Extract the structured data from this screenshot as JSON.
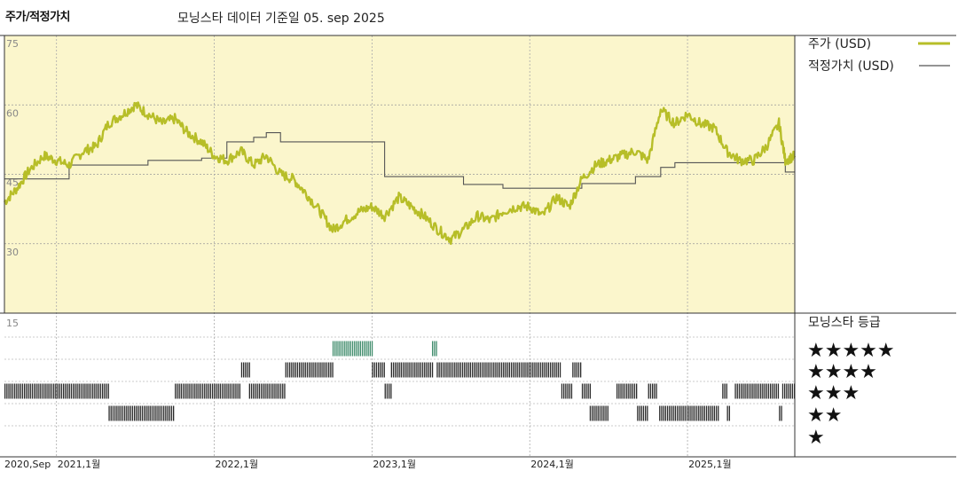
{
  "header": {
    "title": "주가/적정가치",
    "subtitle": "모닝스타 데이터 기준일 05. sep 2025"
  },
  "colors": {
    "price": "#b7be28",
    "fair": "#555555",
    "panel_bg": "#fbf6cc",
    "rating_green": "#3d8a6a",
    "rating_dark": "#2a2a2a"
  },
  "chart_data": {
    "type": "line",
    "y_axis": {
      "ylim": [
        15,
        75
      ],
      "ticks": [
        75,
        60,
        45,
        30
      ]
    },
    "x_axis": {
      "tick_labels": [
        "2020,Sep",
        "2021,1월",
        "2022,1월",
        "2023,1월",
        "2024,1월",
        "2025,1월"
      ],
      "tick_dates": [
        2020.67,
        2021.0,
        2022.0,
        2023.0,
        2024.0,
        2025.0
      ],
      "xlim": [
        2020.67,
        2025.68
      ]
    },
    "series": [
      {
        "name": "주가 (USD)",
        "points": [
          [
            2020.67,
            39
          ],
          [
            2020.75,
            42
          ],
          [
            2020.83,
            46
          ],
          [
            2020.92,
            49
          ],
          [
            2021.0,
            48
          ],
          [
            2021.08,
            47
          ],
          [
            2021.17,
            50
          ],
          [
            2021.25,
            51
          ],
          [
            2021.33,
            56
          ],
          [
            2021.42,
            58
          ],
          [
            2021.5,
            60
          ],
          [
            2021.58,
            58
          ],
          [
            2021.67,
            56
          ],
          [
            2021.75,
            57
          ],
          [
            2021.83,
            54
          ],
          [
            2021.92,
            52
          ],
          [
            2022.0,
            49
          ],
          [
            2022.08,
            48
          ],
          [
            2022.17,
            50
          ],
          [
            2022.25,
            47
          ],
          [
            2022.33,
            49
          ],
          [
            2022.42,
            45
          ],
          [
            2022.5,
            44
          ],
          [
            2022.58,
            41
          ],
          [
            2022.67,
            37
          ],
          [
            2022.75,
            33
          ],
          [
            2022.83,
            35
          ],
          [
            2022.92,
            37
          ],
          [
            2023.0,
            38
          ],
          [
            2023.08,
            36
          ],
          [
            2023.17,
            40
          ],
          [
            2023.25,
            38
          ],
          [
            2023.33,
            36
          ],
          [
            2023.42,
            33
          ],
          [
            2023.5,
            31
          ],
          [
            2023.58,
            33
          ],
          [
            2023.67,
            36
          ],
          [
            2023.75,
            35
          ],
          [
            2023.83,
            37
          ],
          [
            2023.92,
            38
          ],
          [
            2024.0,
            38
          ],
          [
            2024.08,
            36
          ],
          [
            2024.17,
            40
          ],
          [
            2024.25,
            38
          ],
          [
            2024.33,
            44
          ],
          [
            2024.42,
            47
          ],
          [
            2024.5,
            48
          ],
          [
            2024.58,
            49
          ],
          [
            2024.67,
            50
          ],
          [
            2024.75,
            48
          ],
          [
            2024.83,
            59
          ],
          [
            2024.92,
            56
          ],
          [
            2025.0,
            58
          ],
          [
            2025.08,
            56
          ],
          [
            2025.17,
            55
          ],
          [
            2025.25,
            50
          ],
          [
            2025.33,
            48
          ],
          [
            2025.42,
            48
          ],
          [
            2025.5,
            51
          ],
          [
            2025.58,
            56
          ],
          [
            2025.62,
            48
          ],
          [
            2025.68,
            49
          ]
        ]
      },
      {
        "name": "적정가치 (USD)",
        "steps": [
          [
            2020.67,
            44
          ],
          [
            2021.08,
            47
          ],
          [
            2021.58,
            48
          ],
          [
            2021.92,
            48.5
          ],
          [
            2022.08,
            52
          ],
          [
            2022.25,
            53
          ],
          [
            2022.33,
            54
          ],
          [
            2022.42,
            52
          ],
          [
            2023.08,
            44.5
          ],
          [
            2023.58,
            42.8
          ],
          [
            2023.83,
            42
          ],
          [
            2024.25,
            42
          ],
          [
            2024.33,
            43
          ],
          [
            2024.67,
            44.5
          ],
          [
            2024.83,
            46.5
          ],
          [
            2024.92,
            47.5
          ],
          [
            2025.62,
            45.5
          ],
          [
            2025.68,
            45.5
          ]
        ]
      }
    ],
    "legend": [
      "주가 (USD)",
      "적정가치 (USD)"
    ],
    "rating_panel": {
      "title": "모닝스타 등급",
      "rows": [
        "★★★★★",
        "★★★★",
        "★★★",
        "★★",
        "★"
      ],
      "segments": [
        {
          "stars": 3,
          "from": 2020.67,
          "to": 2021.33
        },
        {
          "stars": 2,
          "from": 2021.33,
          "to": 2021.75
        },
        {
          "stars": 3,
          "from": 2021.75,
          "to": 2022.17
        },
        {
          "stars": 4,
          "from": 2022.17,
          "to": 2022.22
        },
        {
          "stars": 3,
          "from": 2022.22,
          "to": 2022.45
        },
        {
          "stars": 4,
          "from": 2022.45,
          "to": 2022.75
        },
        {
          "stars": 5,
          "from": 2022.75,
          "to": 2023.0
        },
        {
          "stars": 4,
          "from": 2023.0,
          "to": 2023.08
        },
        {
          "stars": 3,
          "from": 2023.08,
          "to": 2023.12
        },
        {
          "stars": 4,
          "from": 2023.12,
          "to": 2023.38
        },
        {
          "stars": 5,
          "from": 2023.38,
          "to": 2023.41
        },
        {
          "stars": 4,
          "from": 2023.41,
          "to": 2024.2
        },
        {
          "stars": 3,
          "from": 2024.2,
          "to": 2024.27
        },
        {
          "stars": 4,
          "from": 2024.27,
          "to": 2024.33
        },
        {
          "stars": 3,
          "from": 2024.33,
          "to": 2024.38
        },
        {
          "stars": 2,
          "from": 2024.38,
          "to": 2024.5
        },
        {
          "stars": 3,
          "from": 2024.55,
          "to": 2024.68
        },
        {
          "stars": 2,
          "from": 2024.68,
          "to": 2024.75
        },
        {
          "stars": 3,
          "from": 2024.75,
          "to": 2024.8
        },
        {
          "stars": 2,
          "from": 2024.82,
          "to": 2025.2
        },
        {
          "stars": 3,
          "from": 2025.22,
          "to": 2025.25
        },
        {
          "stars": 2,
          "from": 2025.25,
          "to": 2025.27
        },
        {
          "stars": 3,
          "from": 2025.3,
          "to": 2025.58
        },
        {
          "stars": 2,
          "from": 2025.58,
          "to": 2025.6
        },
        {
          "stars": 3,
          "from": 2025.6,
          "to": 2025.68
        }
      ]
    }
  }
}
